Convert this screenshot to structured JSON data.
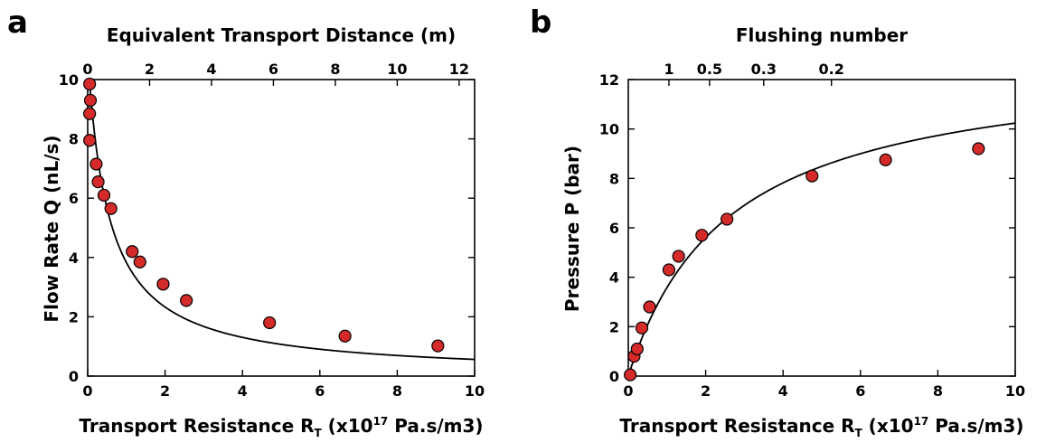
{
  "figure": {
    "panels": [
      "a",
      "b"
    ]
  },
  "chart_data": [
    {
      "panel": "a",
      "type": "scatter",
      "xlabel_prefix": "Transport Resistance R",
      "xlabel_sub": "T",
      "xlabel_mid": " (x10",
      "xlabel_sup": "17",
      "xlabel_suffix": " Pa.s/m3)",
      "ylabel": "Flow Rate Q  (nL/s)",
      "top_xlabel": "Equivalent Transport Distance (m)",
      "xlim": [
        0,
        10
      ],
      "ylim": [
        0,
        10
      ],
      "x_ticks": [
        0,
        2,
        4,
        6,
        8,
        10
      ],
      "y_ticks": [
        0,
        2,
        4,
        6,
        8,
        10
      ],
      "top_ticks": [
        0,
        2,
        4,
        6,
        8,
        10,
        12
      ],
      "top_to_bottom_scale": 0.8,
      "series": [
        {
          "points": [
            [
              0.05,
              9.85
            ],
            [
              0.07,
              9.3
            ],
            [
              0.05,
              8.85
            ],
            [
              0.05,
              7.95
            ],
            [
              0.22,
              7.15
            ],
            [
              0.27,
              6.55
            ],
            [
              0.42,
              6.1
            ],
            [
              0.6,
              5.65
            ],
            [
              1.15,
              4.2
            ],
            [
              1.35,
              3.85
            ],
            [
              1.95,
              3.1
            ],
            [
              2.55,
              2.55
            ],
            [
              4.7,
              1.8
            ],
            [
              6.65,
              1.35
            ],
            [
              9.05,
              1.02
            ]
          ]
        }
      ],
      "fit": {
        "form": "hyperbolic",
        "x_range": [
          0.01,
          10
        ],
        "a": 10.8,
        "b": 0.55
      }
    },
    {
      "panel": "b",
      "type": "scatter",
      "xlabel_prefix": "Transport Resistance R",
      "xlabel_sub": "T",
      "xlabel_mid": " (x10",
      "xlabel_sup": "17",
      "xlabel_suffix": " Pa.s/m3)",
      "ylabel": "Pressure P  (bar)",
      "top_xlabel": "Flushing number",
      "xlim": [
        0,
        10
      ],
      "ylim": [
        0,
        12
      ],
      "x_ticks": [
        0,
        2,
        4,
        6,
        8,
        10
      ],
      "y_ticks": [
        0,
        2,
        4,
        6,
        8,
        10,
        12
      ],
      "top_ticks": [
        1,
        0.5,
        0.3,
        0.2
      ],
      "top_to_bottom_constant": 1.05,
      "series": [
        {
          "points": [
            [
              0.05,
              0.05
            ],
            [
              0.15,
              0.8
            ],
            [
              0.23,
              1.1
            ],
            [
              0.35,
              1.95
            ],
            [
              0.55,
              2.8
            ],
            [
              1.05,
              4.3
            ],
            [
              1.3,
              4.85
            ],
            [
              1.9,
              5.7
            ],
            [
              2.55,
              6.35
            ],
            [
              4.75,
              8.1
            ],
            [
              6.65,
              8.75
            ],
            [
              9.05,
              9.2
            ]
          ]
        }
      ],
      "fit": {
        "form": "saturating",
        "x_range": [
          0,
          10
        ],
        "a": 12.9,
        "b": 2.6
      }
    }
  ]
}
